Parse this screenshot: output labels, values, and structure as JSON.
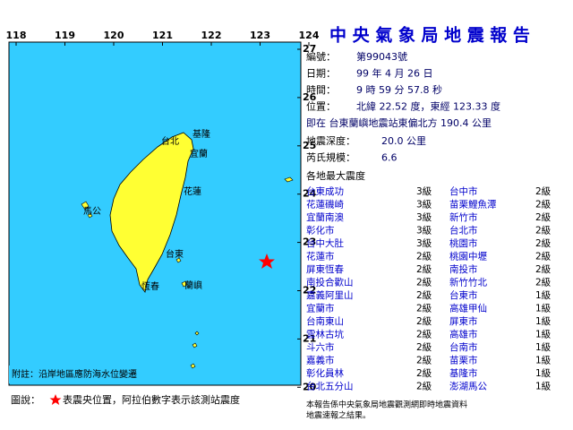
{
  "map": {
    "lon_labels": [
      118,
      119,
      120,
      121,
      122,
      123,
      124
    ],
    "lat_labels": [
      27,
      26,
      25,
      24,
      23,
      22,
      21,
      20
    ],
    "place_labels": [
      "基隆",
      "宜蘭",
      "台北",
      "花蓮",
      "馬公",
      "台東",
      "恆春",
      "蘭嶼"
    ],
    "note": "附註：沿岸地區應防海水位變遷"
  },
  "legend": {
    "prefix": "圖說：",
    "text": "表震央位置，阿拉伯數字表示該測站震度"
  },
  "report": {
    "title": "中 央 氣 象 局 地 震 報 告",
    "fields": [
      {
        "label": "編號：",
        "value": "第99043號"
      },
      {
        "label": "日期：",
        "value": "99 年 4 月 26 日"
      },
      {
        "label": "時間：",
        "value": "9 時 59 分 57.8 秒"
      },
      {
        "label": "位置：",
        "value": "北緯 22.52 度，東經 123.33 度"
      }
    ],
    "location_detail": "即在 台東蘭嶼地震站東偏北方 190.4 公里",
    "fields2": [
      {
        "label": "地震深度：",
        "value": "20.0 公里"
      },
      {
        "label": "芮氏規模：",
        "value": "6.6"
      }
    ],
    "intensity_heading": "各地最大震度",
    "stations": [
      [
        "台東成功",
        "3級",
        "台中市",
        "2級"
      ],
      [
        "花蓮磯崎",
        "3級",
        "苗栗鯉魚潭",
        "2級"
      ],
      [
        "宜蘭南澳",
        "3級",
        "新竹市",
        "2級"
      ],
      [
        "彰化市",
        "3級",
        "台北市",
        "2級"
      ],
      [
        "台中大肚",
        "3級",
        "桃園市",
        "2級"
      ],
      [
        "花蓮市",
        "2級",
        "桃園中壢",
        "2級"
      ],
      [
        "屏東恆春",
        "2級",
        "南投市",
        "2級"
      ],
      [
        "南投合歡山",
        "2級",
        "新竹竹北",
        "2級"
      ],
      [
        "嘉義阿里山",
        "2級",
        "台東市",
        "1級"
      ],
      [
        "宜蘭市",
        "2級",
        "高雄甲仙",
        "1級"
      ],
      [
        "台南東山",
        "2級",
        "屏東市",
        "1級"
      ],
      [
        "雲林古坑",
        "2級",
        "高雄市",
        "1級"
      ],
      [
        "斗六市",
        "2級",
        "台南市",
        "1級"
      ],
      [
        "嘉義市",
        "2級",
        "苗栗市",
        "1級"
      ],
      [
        "彰化員林",
        "2級",
        "基隆市",
        "1級"
      ],
      [
        "台北五分山",
        "2級",
        "澎湖馬公",
        "1級"
      ]
    ],
    "footer": [
      "本報告係中央氣象局地震觀測網即時地震資料",
      "地震速報之結果。"
    ]
  }
}
